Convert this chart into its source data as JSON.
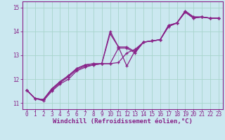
{
  "xlabel": "Windchill (Refroidissement éolien,°C)",
  "bg_color": "#cbe8f0",
  "grid_color": "#a8d4cc",
  "line_color": "#882288",
  "spine_color": "#882288",
  "xlim": [
    -0.5,
    23.5
  ],
  "ylim": [
    10.75,
    15.25
  ],
  "xticks": [
    0,
    1,
    2,
    3,
    4,
    5,
    6,
    7,
    8,
    9,
    10,
    11,
    12,
    13,
    14,
    15,
    16,
    17,
    18,
    19,
    20,
    21,
    22,
    23
  ],
  "yticks": [
    11,
    12,
    13,
    14,
    15
  ],
  "lines": [
    [
      11.55,
      11.2,
      11.1,
      11.5,
      11.8,
      12.0,
      12.35,
      12.5,
      12.6,
      12.65,
      13.9,
      13.35,
      13.35,
      13.15,
      13.55,
      13.6,
      13.65,
      14.2,
      14.35,
      14.8,
      14.55,
      14.6,
      14.55,
      14.55
    ],
    [
      11.55,
      11.2,
      11.15,
      11.55,
      11.85,
      12.1,
      12.4,
      12.55,
      12.6,
      12.65,
      12.65,
      12.7,
      13.1,
      13.25,
      13.55,
      13.6,
      13.65,
      14.25,
      14.35,
      14.85,
      14.6,
      14.6,
      14.55,
      14.55
    ],
    [
      11.55,
      11.2,
      11.15,
      11.6,
      11.9,
      12.15,
      12.45,
      12.6,
      12.65,
      12.65,
      12.65,
      13.3,
      13.3,
      13.1,
      13.55,
      13.6,
      13.65,
      14.2,
      14.35,
      14.8,
      14.55,
      14.6,
      14.55,
      14.55
    ],
    [
      11.55,
      11.2,
      11.15,
      11.6,
      11.9,
      12.15,
      12.45,
      12.6,
      12.65,
      12.65,
      14.0,
      13.35,
      12.55,
      13.2,
      13.55,
      13.6,
      13.65,
      14.25,
      14.35,
      14.85,
      14.6,
      14.6,
      14.55,
      14.55
    ]
  ],
  "marker": "+",
  "markersize": 3.5,
  "linewidth": 0.9,
  "tick_fontsize": 5.5,
  "xlabel_fontsize": 6.5,
  "xlabel_fontweight": "bold"
}
